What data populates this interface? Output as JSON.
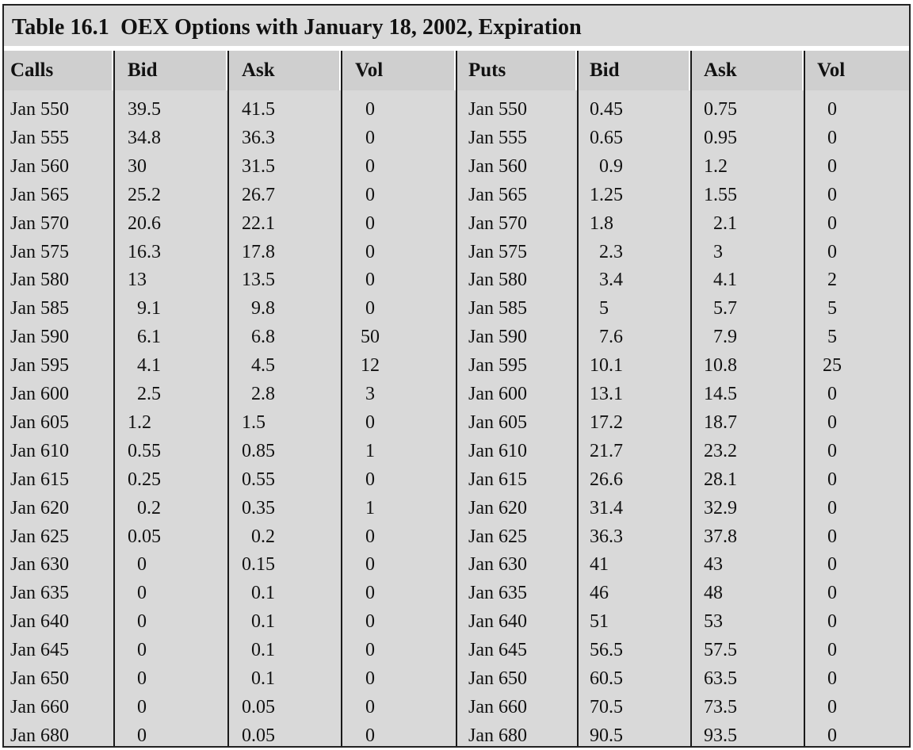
{
  "title": "Table 16.1  OEX Options with January 18, 2002, Expiration",
  "headers": [
    "Calls",
    "Bid",
    "Ask",
    "Vol",
    "Puts",
    "Bid",
    "Ask",
    "Vol"
  ],
  "rows": [
    [
      "Jan 550",
      "39.5",
      "41.5",
      "0",
      "Jan 550",
      "0.45",
      "0.75",
      "0"
    ],
    [
      "Jan 555",
      "34.8",
      "36.3",
      "0",
      "Jan 555",
      "0.65",
      "0.95",
      "0"
    ],
    [
      "Jan 560",
      "30",
      "31.5",
      "0",
      "Jan 560",
      "0.9",
      "1.2",
      "0"
    ],
    [
      "Jan 565",
      "25.2",
      "26.7",
      "0",
      "Jan 565",
      "1.25",
      "1.55",
      "0"
    ],
    [
      "Jan 570",
      "20.6",
      "22.1",
      "0",
      "Jan 570",
      "1.8",
      "2.1",
      "0"
    ],
    [
      "Jan 575",
      "16.3",
      "17.8",
      "0",
      "Jan 575",
      "2.3",
      "3",
      "0"
    ],
    [
      "Jan 580",
      "13",
      "13.5",
      "0",
      "Jan 580",
      "3.4",
      "4.1",
      "2"
    ],
    [
      "Jan 585",
      "9.1",
      "9.8",
      "0",
      "Jan 585",
      "5",
      "5.7",
      "5"
    ],
    [
      "Jan 590",
      "6.1",
      "6.8",
      "50",
      "Jan 590",
      "7.6",
      "7.9",
      "5"
    ],
    [
      "Jan 595",
      "4.1",
      "4.5",
      "12",
      "Jan 595",
      "10.1",
      "10.8",
      "25"
    ],
    [
      "Jan 600",
      "2.5",
      "2.8",
      "3",
      "Jan 600",
      "13.1",
      "14.5",
      "0"
    ],
    [
      "Jan 605",
      "1.2",
      "1.5",
      "0",
      "Jan 605",
      "17.2",
      "18.7",
      "0"
    ],
    [
      "Jan 610",
      "0.55",
      "0.85",
      "1",
      "Jan 610",
      "21.7",
      "23.2",
      "0"
    ],
    [
      "Jan 615",
      "0.25",
      "0.55",
      "0",
      "Jan 615",
      "26.6",
      "28.1",
      "0"
    ],
    [
      "Jan 620",
      "0.2",
      "0.35",
      "1",
      "Jan 620",
      "31.4",
      "32.9",
      "0"
    ],
    [
      "Jan 625",
      "0.05",
      "0.2",
      "0",
      "Jan 625",
      "36.3",
      "37.8",
      "0"
    ],
    [
      "Jan 630",
      "0",
      "0.15",
      "0",
      "Jan 630",
      "41",
      "43",
      "0"
    ],
    [
      "Jan 635",
      "0",
      "0.1",
      "0",
      "Jan 635",
      "46",
      "48",
      "0"
    ],
    [
      "Jan 640",
      "0",
      "0.1",
      "0",
      "Jan 640",
      "51",
      "53",
      "0"
    ],
    [
      "Jan 645",
      "0",
      "0.1",
      "0",
      "Jan 645",
      "56.5",
      "57.5",
      "0"
    ],
    [
      "Jan 650",
      "0",
      "0.1",
      "0",
      "Jan 650",
      "60.5",
      "63.5",
      "0"
    ],
    [
      "Jan 660",
      "0",
      "0.05",
      "0",
      "Jan 660",
      "70.5",
      "73.5",
      "0"
    ],
    [
      "Jan 680",
      "0",
      "0.05",
      "0",
      "Jan 680",
      "90.5",
      "93.5",
      "0"
    ]
  ]
}
